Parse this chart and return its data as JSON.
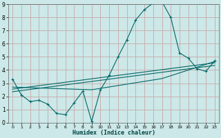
{
  "xlabel": "Humidex (Indice chaleur)",
  "bg_color": "#cce8e8",
  "line_color": "#006666",
  "grid_color": "#c8a8a8",
  "xlim": [
    -0.5,
    23.5
  ],
  "ylim": [
    0,
    9
  ],
  "xticks": [
    0,
    1,
    2,
    3,
    4,
    5,
    6,
    7,
    8,
    9,
    10,
    11,
    12,
    13,
    14,
    15,
    16,
    17,
    18,
    19,
    20,
    21,
    22,
    23
  ],
  "yticks": [
    0,
    1,
    2,
    3,
    4,
    5,
    6,
    7,
    8,
    9
  ],
  "curve1_x": [
    0,
    1,
    2,
    3,
    4,
    5,
    6,
    7,
    8,
    9,
    10,
    11,
    12,
    13,
    14,
    15,
    16,
    17,
    18,
    19,
    20,
    21,
    22,
    23
  ],
  "curve1_y": [
    3.3,
    2.1,
    1.6,
    1.7,
    1.4,
    0.7,
    0.6,
    1.5,
    2.4,
    0.1,
    2.5,
    3.6,
    5.0,
    6.3,
    7.8,
    8.6,
    9.1,
    9.2,
    8.0,
    5.3,
    4.9,
    4.1,
    3.9,
    4.7
  ],
  "line2_x": [
    0,
    23
  ],
  "line2_y": [
    2.55,
    4.55
  ],
  "line3_x": [
    0,
    23
  ],
  "line3_y": [
    2.35,
    4.35
  ],
  "line4_x": [
    0,
    9,
    17,
    23
  ],
  "line4_y": [
    2.7,
    2.5,
    3.35,
    4.65
  ]
}
